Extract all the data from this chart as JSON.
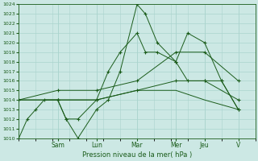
{
  "xlabel": "Pression niveau de la mer( hPa )",
  "ylim": [
    1010,
    1024
  ],
  "yticks": [
    1010,
    1011,
    1012,
    1013,
    1014,
    1015,
    1016,
    1017,
    1018,
    1019,
    1020,
    1021,
    1022,
    1023,
    1024
  ],
  "xlim": [
    0,
    14
  ],
  "day_labels": [
    "Sam",
    "Lun",
    "Mar",
    "Mer",
    "Jeu",
    "V"
  ],
  "day_positions": [
    2.3,
    4.6,
    7.0,
    9.3,
    11.0,
    13.0
  ],
  "bg_color": "#cce8e4",
  "line_color": "#1a5c1a",
  "grid_color": "#aad4ce",
  "series": [
    {
      "x": [
        0,
        0.5,
        1.0,
        1.5,
        2.3,
        2.8,
        3.5,
        4.6,
        5.3,
        6.0,
        7.0,
        7.5,
        8.2,
        9.3,
        10.0,
        11.0,
        12.0,
        13.0
      ],
      "y": [
        1010,
        1012,
        1013,
        1014,
        1014,
        1012,
        1010,
        1013,
        1014,
        1017,
        1024,
        1023,
        1020,
        1018,
        1021,
        1020,
        1016,
        1013
      ],
      "marker": "+"
    },
    {
      "x": [
        2.3,
        2.8,
        3.5,
        4.6,
        5.3,
        6.0,
        7.0,
        7.5,
        8.2,
        9.3,
        10.0,
        11.0,
        12.0,
        13.0
      ],
      "y": [
        1014,
        1012,
        1012,
        1014,
        1017,
        1019,
        1021,
        1019,
        1019,
        1018,
        1016,
        1016,
        1016,
        1013
      ],
      "marker": "+"
    },
    {
      "x": [
        0,
        2.3,
        4.6,
        7.0,
        9.3,
        11.0,
        13.0
      ],
      "y": [
        1014,
        1015,
        1015,
        1016,
        1019,
        1019,
        1016
      ],
      "marker": "+"
    },
    {
      "x": [
        0,
        2.3,
        4.6,
        7.0,
        9.3,
        11.0,
        13.0
      ],
      "y": [
        1014,
        1014,
        1014,
        1015,
        1016,
        1016,
        1014
      ],
      "marker": "+"
    },
    {
      "x": [
        0,
        2.3,
        4.6,
        7.0,
        9.3,
        11.0,
        13.0
      ],
      "y": [
        1014,
        1014,
        1014,
        1015,
        1015,
        1014,
        1013
      ],
      "marker": null
    }
  ]
}
